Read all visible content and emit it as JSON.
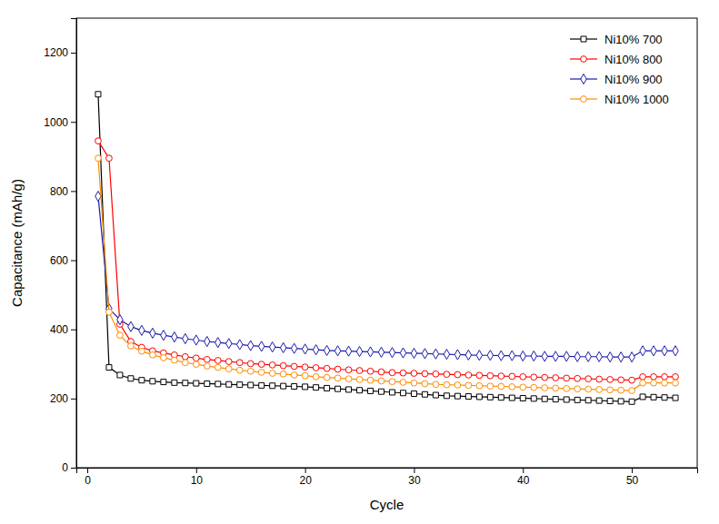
{
  "chart_data": {
    "type": "line",
    "xlabel": "Cycle",
    "ylabel": "Capacitance (mAh/g)",
    "x": [
      1,
      2,
      3,
      4,
      5,
      6,
      7,
      8,
      9,
      10,
      11,
      12,
      13,
      14,
      15,
      16,
      17,
      18,
      19,
      20,
      21,
      22,
      23,
      24,
      25,
      26,
      27,
      28,
      29,
      30,
      31,
      32,
      33,
      34,
      35,
      36,
      37,
      38,
      39,
      40,
      41,
      42,
      43,
      44,
      45,
      46,
      47,
      48,
      49,
      50,
      51,
      52,
      53,
      54
    ],
    "series": [
      {
        "name": "Ni10% 700",
        "color": "#000000",
        "marker": "square",
        "values": [
          1080,
          290,
          268,
          258,
          253,
          250,
          248,
          246,
          245,
          244,
          243,
          242,
          241,
          240,
          239,
          238,
          237,
          236,
          235,
          234,
          232,
          230,
          228,
          226,
          224,
          222,
          220,
          218,
          216,
          214,
          212,
          210,
          208,
          207,
          206,
          205,
          204,
          203,
          202,
          201,
          200,
          199,
          198,
          197,
          196,
          195,
          194,
          193,
          192,
          191,
          205,
          204,
          203,
          202
        ]
      },
      {
        "name": "Ni10% 800",
        "color": "#ff0000",
        "marker": "circle",
        "values": [
          945,
          895,
          415,
          365,
          348,
          338,
          332,
          326,
          321,
          317,
          313,
          310,
          307,
          304,
          301,
          299,
          297,
          295,
          293,
          291,
          289,
          287,
          285,
          283,
          281,
          279,
          277,
          275,
          274,
          273,
          272,
          271,
          270,
          269,
          268,
          267,
          266,
          265,
          264,
          263,
          262,
          261,
          260,
          259,
          258,
          257,
          256,
          255,
          254,
          253,
          263,
          263,
          263,
          263
        ]
      },
      {
        "name": "Ni10% 900",
        "color": "#1a1aaa",
        "marker": "diamond",
        "values": [
          785,
          460,
          428,
          408,
          397,
          389,
          383,
          378,
          373,
          369,
          365,
          362,
          359,
          356,
          353,
          351,
          349,
          347,
          345,
          343,
          341,
          339,
          338,
          337,
          336,
          335,
          334,
          333,
          332,
          331,
          330,
          329,
          328,
          327,
          326,
          325,
          325,
          324,
          324,
          323,
          323,
          322,
          322,
          322,
          321,
          321,
          321,
          320,
          320,
          320,
          338,
          338,
          338,
          338
        ]
      },
      {
        "name": "Ni10% 1000",
        "color": "#ff8c00",
        "marker": "circle",
        "values": [
          895,
          450,
          383,
          352,
          337,
          326,
          318,
          311,
          304,
          299,
          294,
          290,
          286,
          282,
          279,
          276,
          273,
          271,
          268,
          266,
          263,
          261,
          259,
          257,
          255,
          253,
          251,
          249,
          247,
          245,
          243,
          241,
          240,
          239,
          238,
          237,
          236,
          235,
          234,
          233,
          232,
          231,
          230,
          229,
          228,
          227,
          226,
          225,
          224,
          223,
          245,
          245,
          245,
          245
        ]
      }
    ],
    "xlim": [
      -1,
      56
    ],
    "ylim": [
      0,
      1300
    ],
    "xticks": [
      0,
      10,
      20,
      30,
      40,
      50
    ],
    "yticks": [
      0,
      200,
      400,
      600,
      800,
      1000,
      1200
    ],
    "grid": false,
    "legend": "upper right"
  }
}
